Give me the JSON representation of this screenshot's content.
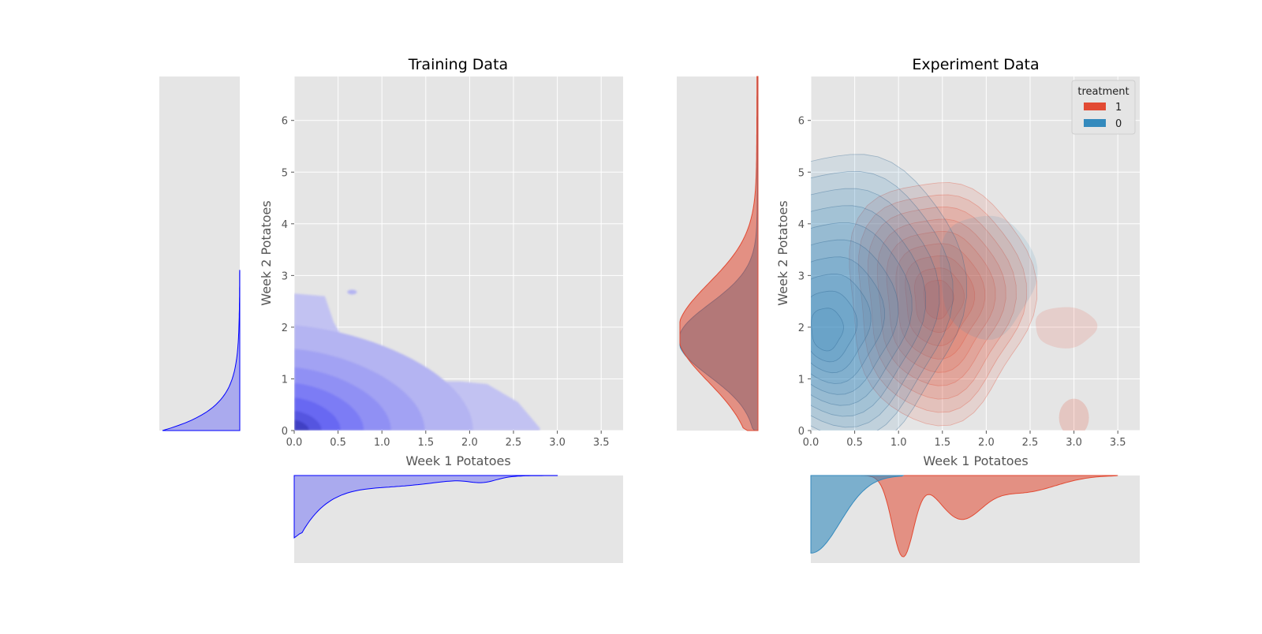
{
  "colors": {
    "training": "#6d6df5",
    "training_edge": "#0000ff",
    "treatment_1": "#e24a33",
    "treatment_0": "#348abd",
    "panel_bg": "#e5e5e5",
    "grid": "#ffffff"
  },
  "chart_data": [
    {
      "type": "contour",
      "title": "Training Data",
      "xlabel": "Week 1 Potatoes",
      "ylabel": "Week 2 Potatoes",
      "xlim": [
        0,
        3.75
      ],
      "ylim": [
        0,
        6.85
      ],
      "xticks": [
        "0.0",
        "0.5",
        "1.0",
        "1.5",
        "2.0",
        "2.5",
        "3.0",
        "3.5"
      ],
      "yticks": [
        "0",
        "1",
        "2",
        "3",
        "4",
        "5",
        "6"
      ],
      "grid": true,
      "series": [
        {
          "peak": [
            0.0,
            0.15
          ],
          "sigma": [
            0.9,
            1.05
          ]
        },
        {
          "peak": [
            2.05,
            0.3
          ],
          "sigma": [
            0.5,
            0.45
          ],
          "weight": 0.3
        }
      ],
      "marginal_x": {
        "mode": 0.02,
        "tail_end": 3.0
      },
      "marginal_y": {
        "mode": 0.02,
        "tail_end": 3.1
      }
    },
    {
      "type": "contour",
      "title": "Experiment Data",
      "xlabel": "Week 1 Potatoes",
      "ylabel": "Week 2 Potatoes",
      "xlim": [
        0,
        3.75
      ],
      "ylim": [
        0,
        6.85
      ],
      "xticks": [
        "0.0",
        "0.5",
        "1.0",
        "1.5",
        "2.0",
        "2.5",
        "3.0",
        "3.5"
      ],
      "yticks": [
        "0",
        "1",
        "2",
        "3",
        "4",
        "5",
        "6"
      ],
      "grid": true,
      "legend": {
        "title": "treatment",
        "position": "top-right"
      },
      "series": [
        {
          "name": "1",
          "peak": [
            1.05,
            1.9
          ],
          "extent_x": [
            0.55,
            3.0
          ],
          "extent_y": [
            0.0,
            5.1
          ]
        },
        {
          "name": "0",
          "peak": [
            0.05,
            1.85
          ],
          "extent_x": [
            0.0,
            2.4
          ],
          "extent_y": [
            0.0,
            5.6
          ]
        }
      ],
      "marginal_x": {
        "mode_1": 1.05,
        "mode_0": 0.0
      },
      "marginal_y": {
        "mode_1": 1.9,
        "mode_0": 1.75
      }
    }
  ]
}
